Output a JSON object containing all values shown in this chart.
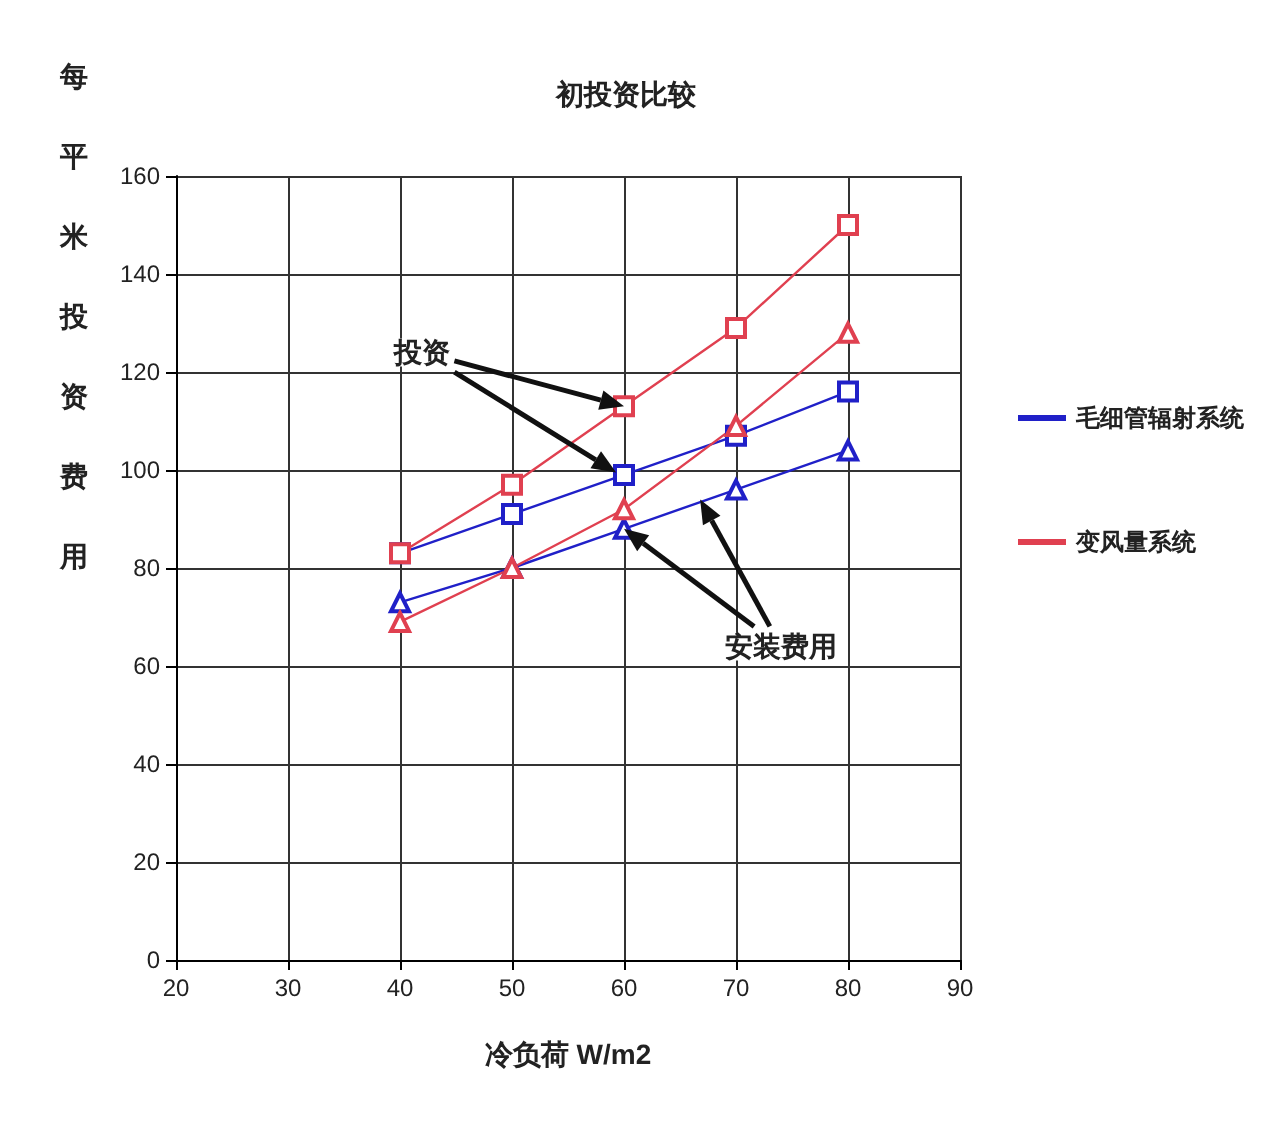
{
  "chart_data": {
    "type": "line",
    "title": "初投资比较",
    "ylabel": "每平米投资费用",
    "xlabel": "冷负荷 W/m2",
    "x": [
      40,
      50,
      60,
      70,
      80
    ],
    "series": [
      {
        "name": "毛细管辐射系统",
        "color": "#2020c8",
        "marker": "square",
        "values": [
          83,
          91,
          99,
          107,
          116
        ]
      },
      {
        "color": "#2020c8",
        "marker": "triangle",
        "values": [
          73,
          80,
          88,
          96,
          104
        ]
      },
      {
        "name": "变风量系统",
        "color": "#e04050",
        "marker": "square",
        "values": [
          83,
          97,
          113,
          129,
          150
        ]
      },
      {
        "color": "#e04050",
        "marker": "triangle",
        "values": [
          69,
          80,
          92,
          109,
          128
        ]
      }
    ],
    "xlim": [
      20,
      90
    ],
    "xticks": [
      20,
      30,
      40,
      50,
      60,
      70,
      80,
      90
    ],
    "ylim": [
      0,
      160
    ],
    "yticks": [
      0,
      20,
      40,
      60,
      80,
      100,
      120,
      140,
      160
    ],
    "annotations": [
      "投资",
      "安装费用"
    ],
    "grid": true,
    "legend": "right",
    "line_style": "solid"
  }
}
